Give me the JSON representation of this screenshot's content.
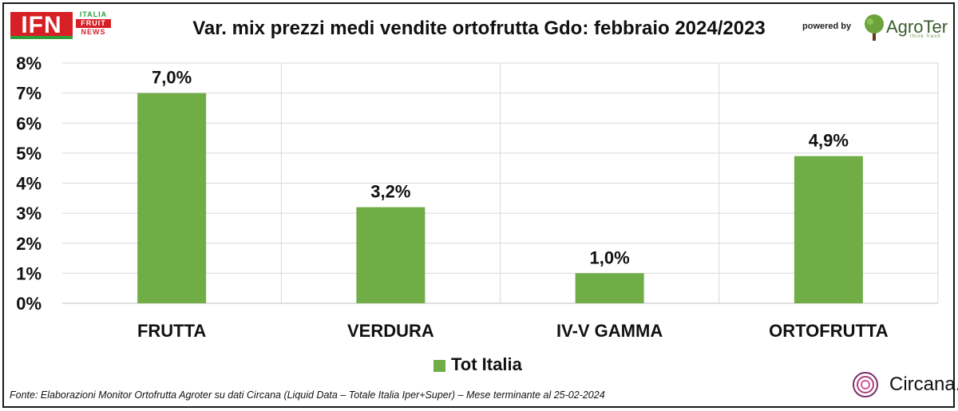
{
  "header": {
    "logo_left": {
      "main": "IFN",
      "line1": "ITALIA",
      "line2": "FRUIT",
      "line3": "NEWS"
    },
    "powered_by": "powered by",
    "logo_right": {
      "main": "AgroTer",
      "tagline": "think fresh"
    }
  },
  "footer": {
    "source": "Fonte: Elaborazioni Monitor Ortofrutta Agroter su dati Circana (Liquid Data – Totale Italia Iper+Super) – Mese terminante al 25-02-2024",
    "logo": "Circana."
  },
  "colors": {
    "bar": "#70ad47",
    "grid": "#d9d9d9",
    "axis": "#000000",
    "ifn_red": "#d71f26",
    "ifn_green": "#2e9e3b"
  },
  "chart_data": {
    "type": "bar",
    "title": "Var. mix prezzi medi vendite ortofrutta Gdo: febbraio 2024/2023",
    "categories": [
      "FRUTTA",
      "VERDURA",
      "IV-V GAMMA",
      "ORTOFRUTTA"
    ],
    "series": [
      {
        "name": "Tot Italia",
        "values": [
          7.0,
          3.2,
          1.0,
          4.9
        ],
        "data_labels": [
          "7,0%",
          "3,2%",
          "1,0%",
          "4,9%"
        ]
      }
    ],
    "ylim": [
      0,
      8
    ],
    "yticks": [
      "0%",
      "1%",
      "2%",
      "3%",
      "4%",
      "5%",
      "6%",
      "7%",
      "8%"
    ],
    "xlabel": "",
    "ylabel": "",
    "grid": true,
    "legend": "bottom"
  }
}
